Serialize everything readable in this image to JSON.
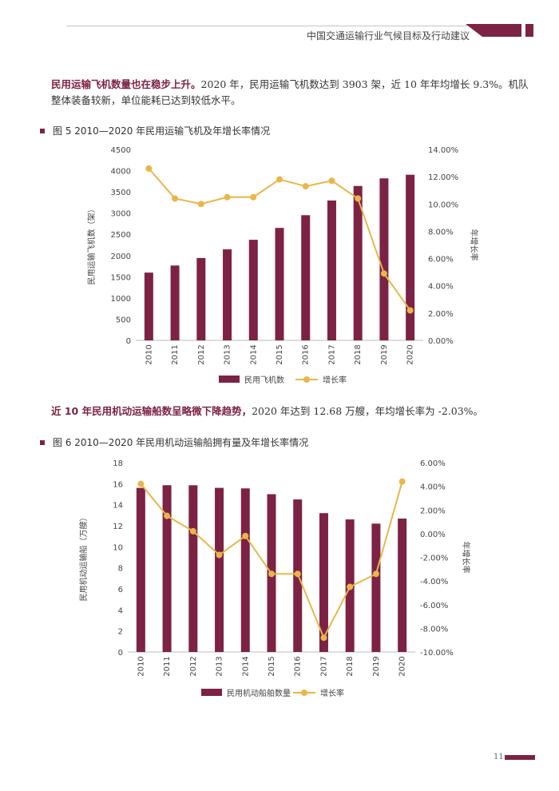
{
  "header": {
    "title": "中国交通运输行业气候目标及行动建议"
  },
  "page_number": "11",
  "colors": {
    "bar": "#7c2245",
    "line": "#e8b74a"
  },
  "para1": {
    "bold": "民用运输飞机数量也在稳步上升。",
    "line1_rest": "2020 年，民用运输飞机数达到 3903 架，近 10 年年均增长 9.3%。机队",
    "line2": "整体装备较新，单位能耗已达到较低水平。"
  },
  "para2": {
    "bold": "近 10 年民用机动运输船数呈略微下降趋势，",
    "rest": "2020 年达到 12.68 万艘，年均增长率为 -2.03%。"
  },
  "chart_data": [
    {
      "type": "bar",
      "title": "图 5  2010—2020 年民用运输飞机及年增长率情况",
      "categories": [
        "2010",
        "2011",
        "2012",
        "2013",
        "2014",
        "2015",
        "2016",
        "2017",
        "2018",
        "2019",
        "2020"
      ],
      "series": [
        {
          "name": "民用飞机数",
          "kind": "bar",
          "axis": "left",
          "values": [
            1597,
            1764,
            1941,
            2145,
            2370,
            2650,
            2950,
            3296,
            3639,
            3818,
            3903
          ]
        },
        {
          "name": "增长率",
          "kind": "line",
          "axis": "right",
          "values": [
            12.6,
            10.4,
            10.0,
            10.5,
            10.5,
            11.8,
            11.3,
            11.7,
            10.4,
            4.9,
            2.2
          ]
        }
      ],
      "ylabel": "民用运输飞机数（架）",
      "y2label": "年增长率",
      "ylim": [
        0,
        4500
      ],
      "yticks": [
        "0",
        "500",
        "1000",
        "1500",
        "2000",
        "2500",
        "3000",
        "3500",
        "4000",
        "4500"
      ],
      "y2lim": [
        0,
        14
      ],
      "y2ticks": [
        "0.00%",
        "2.00%",
        "4.00%",
        "6.00%",
        "8.00%",
        "10.00%",
        "12.00%",
        "14.00%"
      ],
      "legend": "bottom"
    },
    {
      "type": "bar",
      "title": "图 6  2010—2020 年民用机动运输船拥有量及年增长率情况",
      "categories": [
        "2010",
        "2011",
        "2012",
        "2013",
        "2014",
        "2015",
        "2016",
        "2017",
        "2018",
        "2019",
        "2020"
      ],
      "series": [
        {
          "name": "民用机动船舶数量",
          "kind": "bar",
          "axis": "left",
          "values": [
            15.6,
            15.85,
            15.85,
            15.6,
            15.55,
            15.0,
            14.5,
            13.2,
            12.6,
            12.2,
            12.68
          ]
        },
        {
          "name": "增长率",
          "kind": "line",
          "axis": "right",
          "values": [
            4.2,
            1.5,
            0.2,
            -1.8,
            -0.2,
            -3.4,
            -3.4,
            -8.8,
            -4.5,
            -3.4,
            4.4
          ]
        }
      ],
      "ylabel": "民用机动运输船（万艘）",
      "y2label": "年增长率",
      "ylim": [
        0,
        18
      ],
      "yticks": [
        "0",
        "2",
        "4",
        "6",
        "8",
        "10",
        "12",
        "14",
        "16",
        "18"
      ],
      "y2lim": [
        -10,
        6
      ],
      "y2ticks": [
        "-10.00%",
        "-8.00%",
        "-6.00%",
        "-4.00%",
        "-2.00%",
        "0.00%",
        "2.00%",
        "4.00%",
        "6.00%"
      ],
      "legend": "bottom"
    }
  ]
}
